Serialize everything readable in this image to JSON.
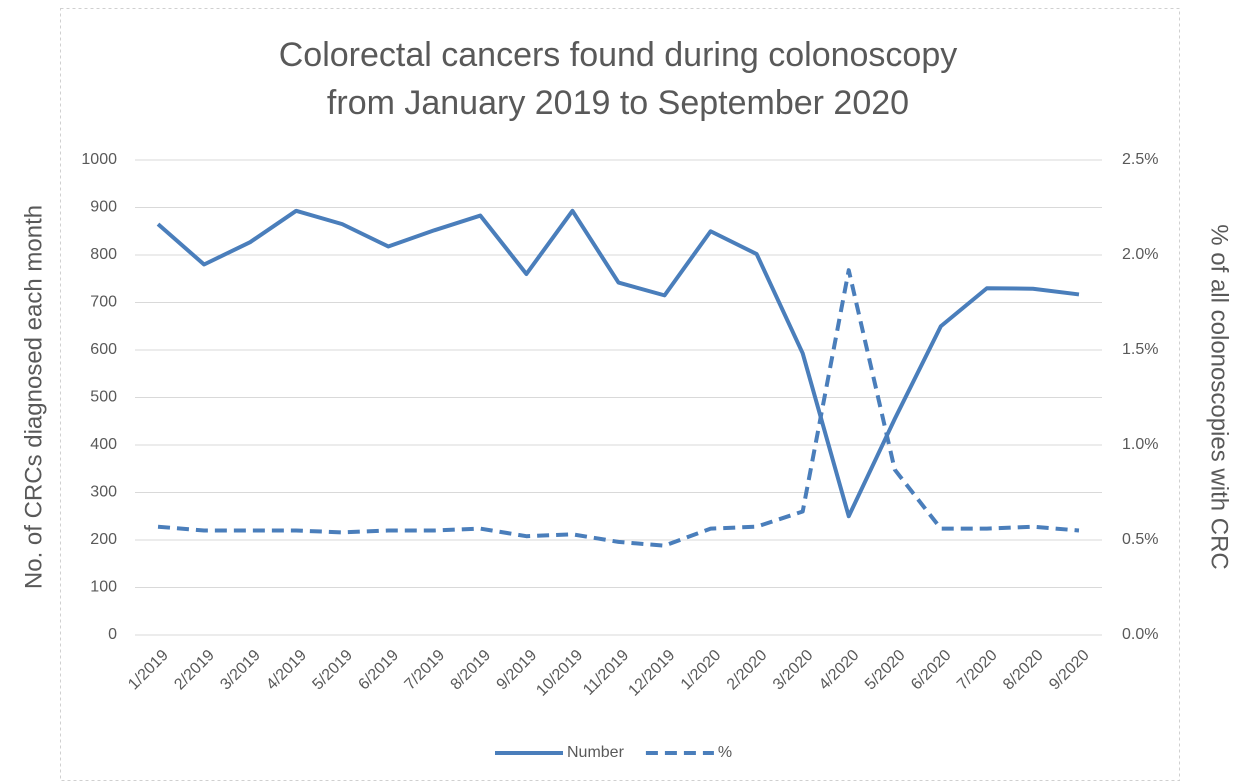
{
  "chart_data": {
    "type": "line",
    "title": [
      "Colorectal cancers found during colonoscopy",
      "from January 2019 to September 2020"
    ],
    "y_label": "No. of CRCs diagnosed each month",
    "y2_label": "% of all colonoscopies with CRC",
    "categories": [
      "1/2019",
      "2/2019",
      "3/2019",
      "4/2019",
      "5/2019",
      "6/2019",
      "7/2019",
      "8/2019",
      "9/2019",
      "10/2019",
      "11/2019",
      "12/2019",
      "1/2020",
      "2/2020",
      "3/2020",
      "4/2020",
      "5/2020",
      "6/2020",
      "7/2020",
      "8/2020",
      "9/2020"
    ],
    "series": [
      {
        "name": "Number",
        "color": "#4a7ebb",
        "dash": false,
        "values": [
          865,
          780,
          827,
          893,
          865,
          818,
          852,
          883,
          760,
          893,
          742,
          715,
          850,
          802,
          593,
          250,
          455,
          650,
          730,
          729,
          717
        ]
      },
      {
        "name": "%",
        "color": "#4a7ebb",
        "dash": true,
        "axis": "y2",
        "values": [
          0.57,
          0.55,
          0.55,
          0.55,
          0.54,
          0.55,
          0.55,
          0.56,
          0.52,
          0.53,
          0.49,
          0.47,
          0.56,
          0.57,
          0.65,
          1.92,
          0.87,
          0.56,
          0.56,
          0.57,
          0.55
        ]
      }
    ],
    "ylim": [
      0,
      1000
    ],
    "yticks": [
      0,
      100,
      200,
      300,
      400,
      500,
      600,
      700,
      800,
      900,
      1000
    ],
    "y2lim": [
      0,
      2.5
    ],
    "y2ticks": [
      {
        "value": 0,
        "label": "0.0%"
      },
      {
        "value": 0.5,
        "label": "0.5%"
      },
      {
        "value": 1,
        "label": "1.0%"
      },
      {
        "value": 1.5,
        "label": "1.5%"
      },
      {
        "value": 2,
        "label": "2.0%"
      },
      {
        "value": 2.5,
        "label": "2.5%"
      }
    ],
    "grid": true,
    "legend": "bottom"
  }
}
